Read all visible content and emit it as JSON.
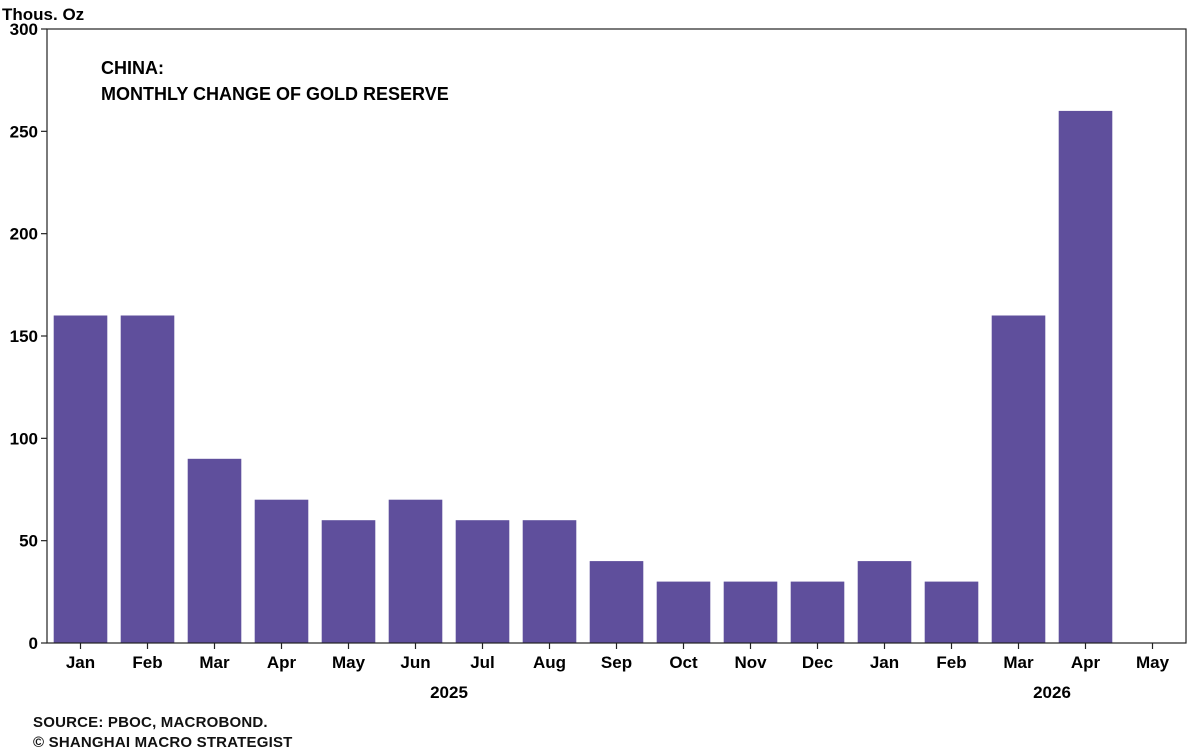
{
  "chart_data": {
    "type": "bar",
    "title_lines": [
      "CHINA:",
      "MONTHLY CHANGE OF GOLD RESERVE"
    ],
    "ylabel": "Thous. Oz",
    "xlabel": "",
    "ylim": [
      0,
      300
    ],
    "yticks": [
      0,
      50,
      100,
      150,
      200,
      250,
      300
    ],
    "categories": [
      "Jan",
      "Feb",
      "Mar",
      "Apr",
      "May",
      "Jun",
      "Jul",
      "Aug",
      "Sep",
      "Oct",
      "Nov",
      "Dec",
      "Jan",
      "Feb",
      "Mar",
      "Apr",
      "May"
    ],
    "values": [
      160,
      160,
      90,
      70,
      60,
      70,
      60,
      60,
      40,
      30,
      30,
      30,
      40,
      30,
      160,
      260,
      0
    ],
    "year_labels": [
      {
        "label": "2025",
        "category_index": 5.5
      },
      {
        "label": "2026",
        "category_index": 14.5
      }
    ],
    "bar_color": "#5f4f9c",
    "grid": false
  },
  "footer": {
    "source": "SOURCE: PBOC, MACROBOND.",
    "copyright": "© SHANGHAI MACRO STRATEGIST"
  }
}
